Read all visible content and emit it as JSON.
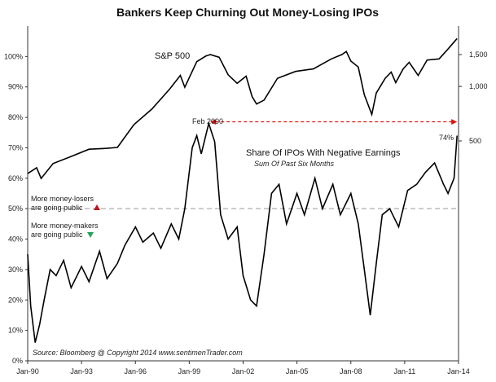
{
  "chart_data": {
    "type": "line",
    "title": "Bankers Keep Churning Out Money-Losing IPOs",
    "x_ticks": [
      "Jan-90",
      "Jan-93",
      "Jan-96",
      "Jan-99",
      "Jan-02",
      "Jan-05",
      "Jan-08",
      "Jan-11",
      "Jan-14"
    ],
    "y_left_ticks": [
      "0%",
      "10%",
      "20%",
      "30%",
      "40%",
      "50%",
      "60%",
      "70%",
      "80%",
      "90%",
      "100%"
    ],
    "y_left_range": [
      0,
      1.1
    ],
    "y_right_ticks": [
      "500",
      "1,000",
      "1,500"
    ],
    "y_right_scale": "log",
    "grid": false,
    "series": [
      {
        "name": "S&P 500",
        "axis": "right",
        "color": "#000000",
        "x": [
          "1990-01",
          "1990-07",
          "1990-10",
          "1991-06",
          "1992-06",
          "1993-06",
          "1994-06",
          "1995-01",
          "1995-12",
          "1996-12",
          "1997-12",
          "1998-07",
          "1998-10",
          "1999-06",
          "1999-12",
          "2000-03",
          "2000-09",
          "2001-03",
          "2001-09",
          "2002-03",
          "2002-07",
          "2002-10",
          "2003-03",
          "2003-12",
          "2004-12",
          "2005-12",
          "2006-12",
          "2007-07",
          "2007-10",
          "2008-01",
          "2008-06",
          "2008-10",
          "2009-03",
          "2009-06",
          "2009-12",
          "2010-04",
          "2010-07",
          "2010-12",
          "2011-04",
          "2011-10",
          "2012-04",
          "2012-12",
          "2013-06",
          "2013-12"
        ],
        "values": [
          330,
          355,
          310,
          375,
          410,
          450,
          455,
          460,
          615,
          750,
          970,
          1150,
          990,
          1370,
          1470,
          1500,
          1450,
          1160,
          1040,
          1140,
          880,
          800,
          840,
          1110,
          1210,
          1250,
          1420,
          1500,
          1560,
          1380,
          1280,
          900,
          700,
          920,
          1110,
          1200,
          1050,
          1250,
          1360,
          1150,
          1400,
          1420,
          1610,
          1840
        ]
      },
      {
        "name": "Share Of IPOs With Negative Earnings",
        "axis": "left",
        "color": "#000000",
        "x": [
          "1990-01",
          "1990-03",
          "1990-06",
          "1990-09",
          "1990-12",
          "1991-04",
          "1991-08",
          "1992-01",
          "1992-06",
          "1993-01",
          "1993-06",
          "1994-01",
          "1994-06",
          "1995-01",
          "1995-06",
          "1996-01",
          "1996-06",
          "1997-01",
          "1997-06",
          "1998-01",
          "1998-06",
          "1998-10",
          "1999-03",
          "1999-06",
          "1999-09",
          "2000-02",
          "2000-06",
          "2000-10",
          "2001-03",
          "2001-09",
          "2002-01",
          "2002-06",
          "2002-10",
          "2003-03",
          "2003-08",
          "2004-01",
          "2004-06",
          "2005-01",
          "2005-06",
          "2006-01",
          "2006-06",
          "2007-01",
          "2007-06",
          "2008-01",
          "2008-06",
          "2008-10",
          "2009-02",
          "2009-06",
          "2009-10",
          "2010-03",
          "2010-09",
          "2011-03",
          "2011-09",
          "2012-03",
          "2012-09",
          "2013-03",
          "2013-06",
          "2013-10",
          "2013-12"
        ],
        "values": [
          0.35,
          0.18,
          0.06,
          0.12,
          0.2,
          0.3,
          0.28,
          0.33,
          0.24,
          0.31,
          0.26,
          0.36,
          0.27,
          0.32,
          0.38,
          0.44,
          0.39,
          0.42,
          0.37,
          0.45,
          0.4,
          0.5,
          0.7,
          0.74,
          0.68,
          0.78,
          0.72,
          0.48,
          0.4,
          0.44,
          0.28,
          0.2,
          0.18,
          0.35,
          0.55,
          0.58,
          0.45,
          0.55,
          0.48,
          0.6,
          0.5,
          0.58,
          0.48,
          0.55,
          0.45,
          0.3,
          0.15,
          0.32,
          0.48,
          0.5,
          0.44,
          0.56,
          0.58,
          0.62,
          0.65,
          0.58,
          0.55,
          0.6,
          0.74
        ]
      }
    ],
    "reference_line": {
      "value": 0.5,
      "color": "#999999"
    },
    "annotations": {
      "sp_label": "S&P 500",
      "peak_label": "Feb 2000",
      "end_label": "74%",
      "series_label": "Share Of IPOs With Negative Earnings",
      "series_sublabel": "Sum Of Past Six Months",
      "losers_line1": "More money-losers",
      "losers_line2": "are going public",
      "makers_line1": "More money-makers",
      "makers_line2": "are going public",
      "source": "Source:  Bloomberg   @ Copyright 2014  www.sentimenTrader.com"
    },
    "colors": {
      "arrow": "#e01010",
      "losers": "#c0141e",
      "makers": "#23a35a"
    }
  }
}
